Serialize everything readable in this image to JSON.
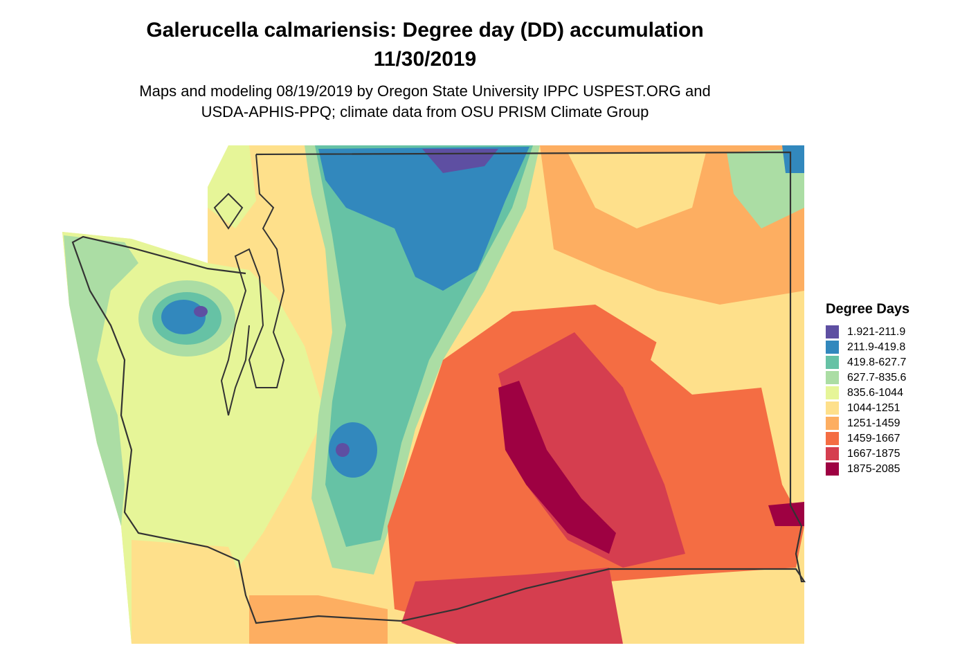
{
  "header": {
    "title": [
      "Galerucella calmariensis: Degree day (DD) accumulation",
      "11/30/2019"
    ],
    "subtitle": [
      "Maps and modeling 08/19/2019 by Oregon State University IPPC USPEST.ORG and",
      "USDA-APHIS-PPQ; climate data from OSU PRISM Climate Group"
    ]
  },
  "legend": {
    "title": "Degree Days",
    "items": [
      {
        "label": "1.921-211.9",
        "color": "#5E4FA2"
      },
      {
        "label": "211.9-419.8",
        "color": "#3288BD"
      },
      {
        "label": "419.8-627.7",
        "color": "#66C2A5"
      },
      {
        "label": "627.7-835.6",
        "color": "#ABDDA4"
      },
      {
        "label": "835.6-1044",
        "color": "#E6F598"
      },
      {
        "label": "1044-1251",
        "color": "#FEE08B"
      },
      {
        "label": "1251-1459",
        "color": "#FDAE61"
      },
      {
        "label": "1459-1667",
        "color": "#F46D43"
      },
      {
        "label": "1667-1875",
        "color": "#D53E4F"
      },
      {
        "label": "1875-2085",
        "color": "#9E0142"
      }
    ]
  }
}
